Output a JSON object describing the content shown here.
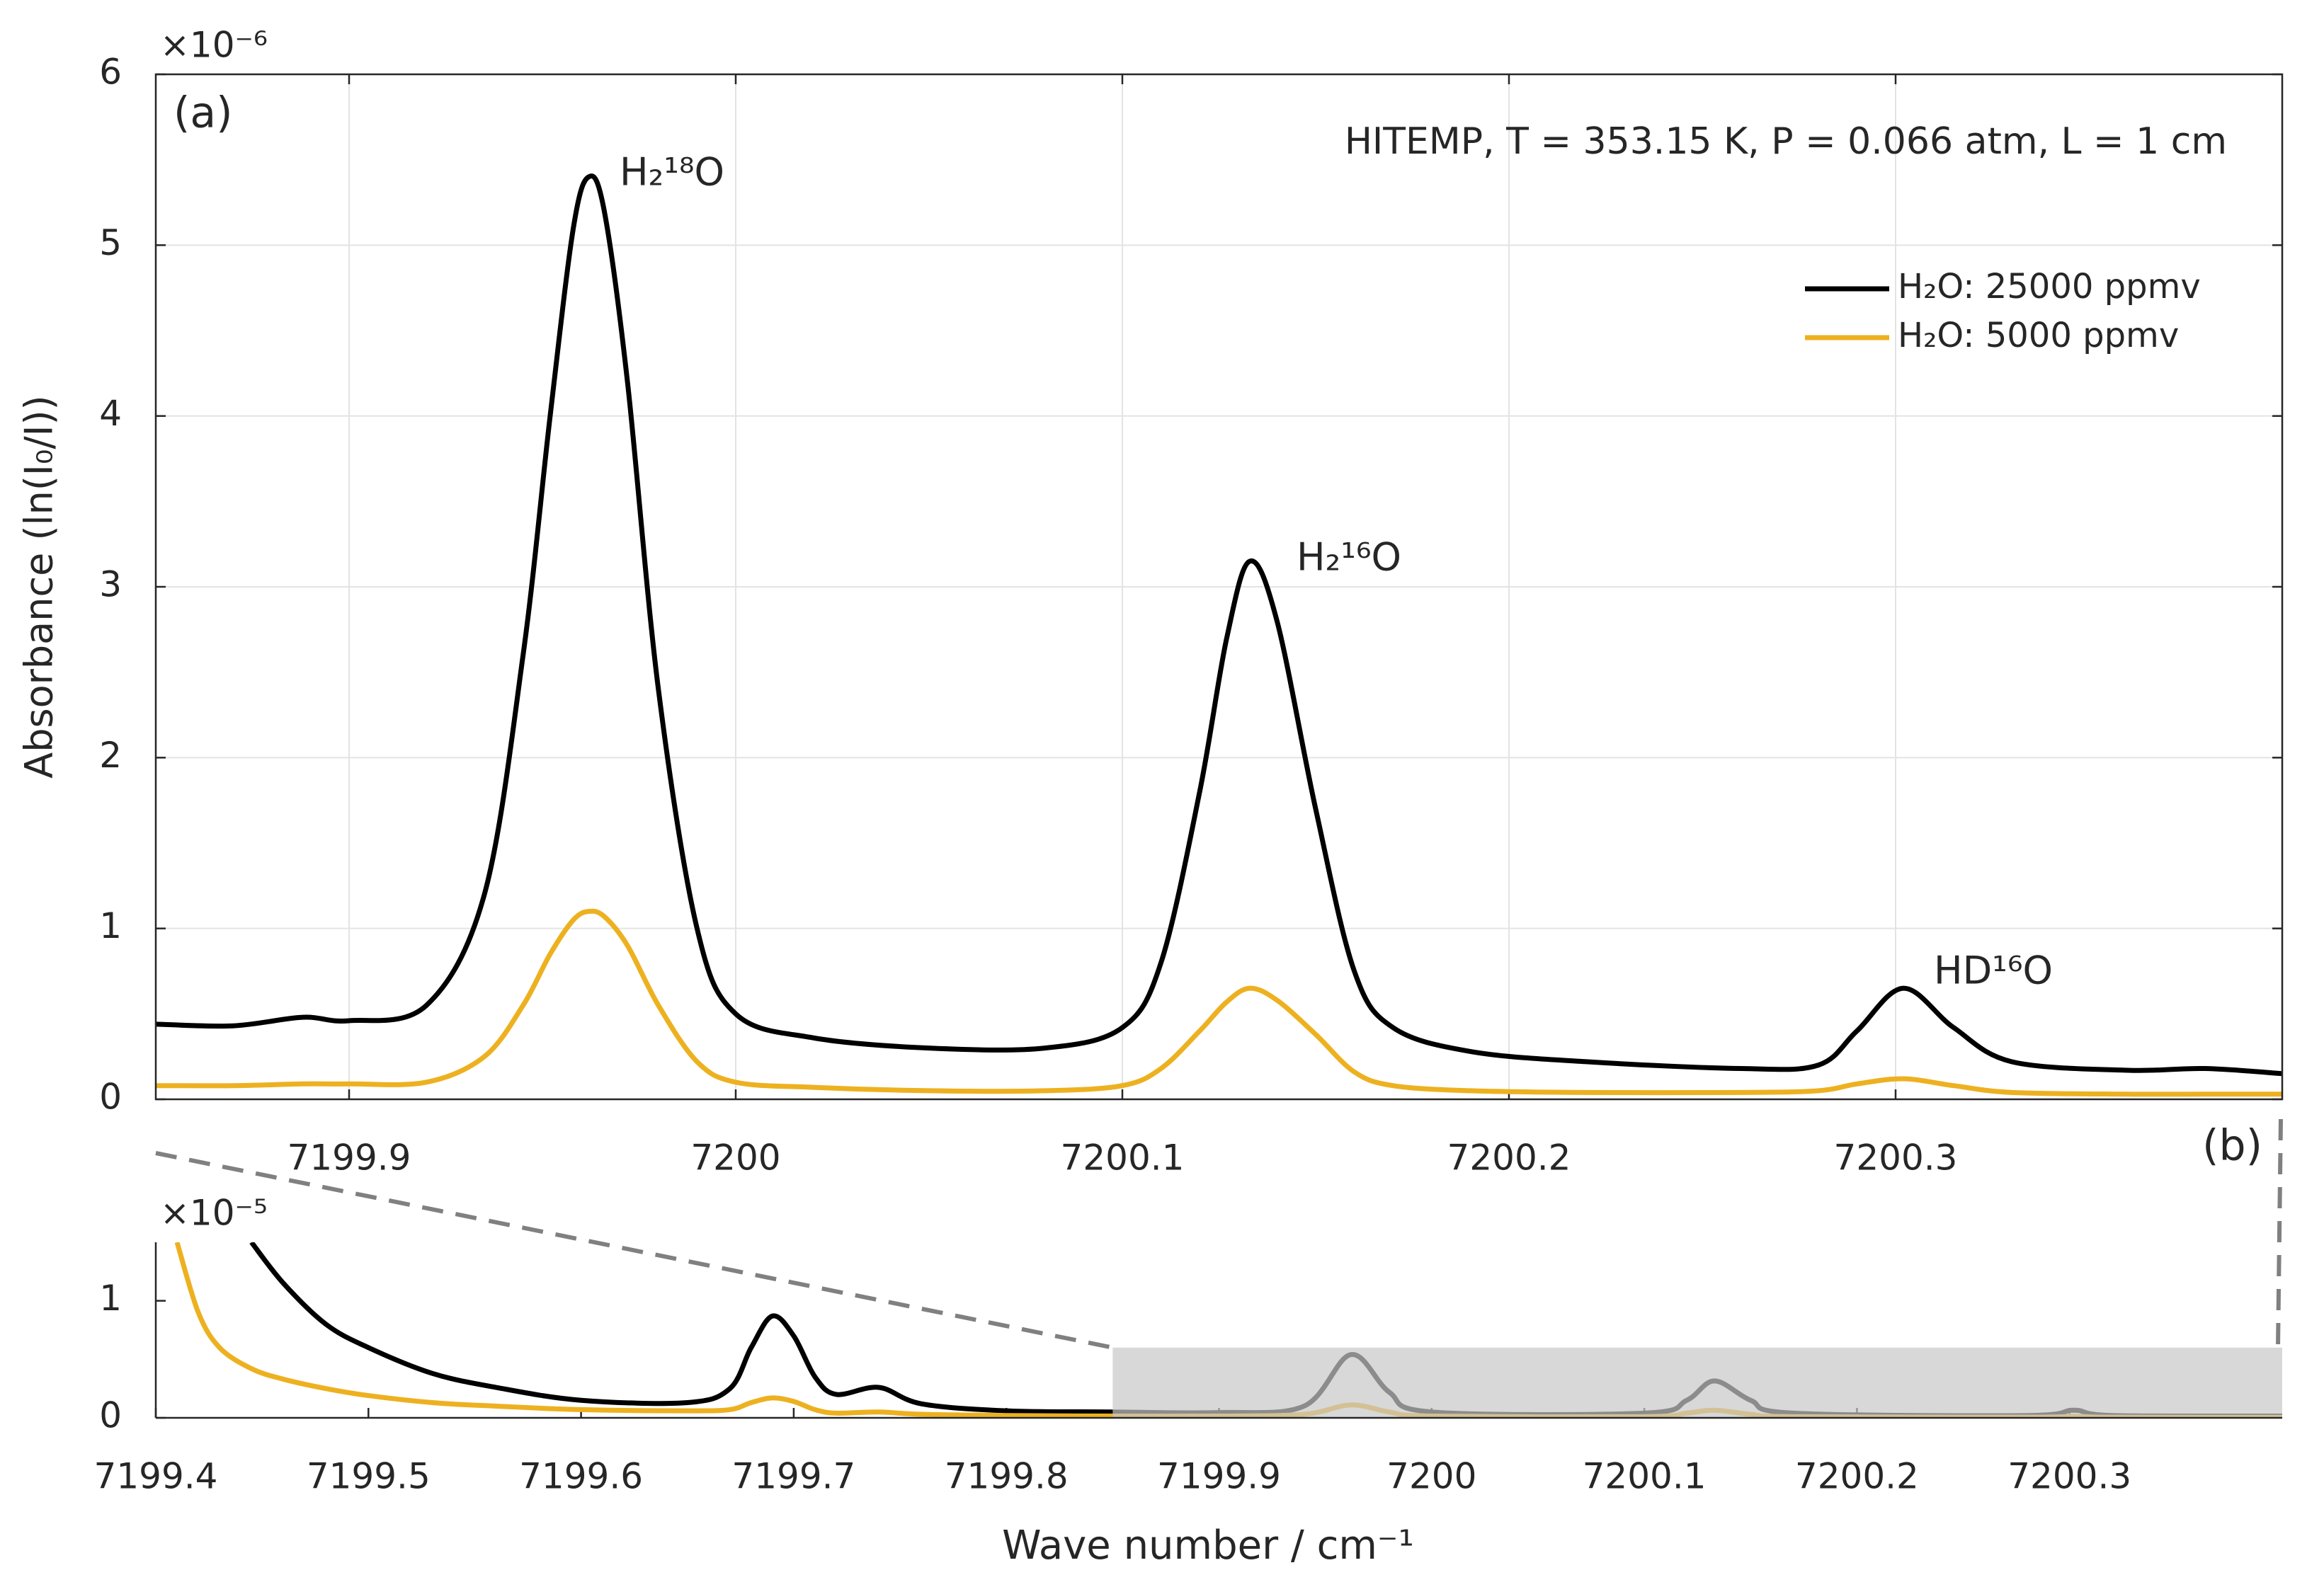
{
  "chart_data": [
    {
      "type": "line",
      "panel_label": "(a)",
      "annotation": "HITEMP, T = 353.15 K, P = 0.066 atm, L = 1 cm",
      "peak_labels": [
        "H₂¹⁸O",
        "H₂¹⁶O",
        "HD¹⁶O"
      ],
      "y_multiplier": "×10⁻⁶",
      "ylabel": "Absorbance (ln(I₀/I))",
      "x": [
        7199.85,
        7199.87,
        7199.888,
        7199.9,
        7199.92,
        7199.935,
        7199.945,
        7199.952,
        7199.958,
        7199.962,
        7199.966,
        7199.972,
        7199.98,
        7199.99,
        7200.0,
        7200.02,
        7200.05,
        7200.08,
        7200.1,
        7200.11,
        7200.12,
        7200.127,
        7200.133,
        7200.14,
        7200.15,
        7200.16,
        7200.17,
        7200.19,
        7200.22,
        7200.26,
        7200.28,
        7200.29,
        7200.302,
        7200.315,
        7200.33,
        7200.36,
        7200.38,
        7200.4
      ],
      "series": [
        {
          "name": "H₂O: 25000 ppmv",
          "color": "#000000",
          "values": [
            0.44,
            0.43,
            0.48,
            0.46,
            0.55,
            1.2,
            2.6,
            4.0,
            5.1,
            5.4,
            5.2,
            4.2,
            2.4,
            1.0,
            0.5,
            0.36,
            0.3,
            0.3,
            0.42,
            0.8,
            1.8,
            2.7,
            3.15,
            2.8,
            1.7,
            0.75,
            0.42,
            0.28,
            0.22,
            0.18,
            0.2,
            0.4,
            0.65,
            0.42,
            0.22,
            0.17,
            0.18,
            0.15
          ]
        },
        {
          "name": "H₂O: 5000 ppmv",
          "color": "#edb120",
          "values": [
            0.08,
            0.08,
            0.09,
            0.09,
            0.1,
            0.25,
            0.55,
            0.85,
            1.05,
            1.1,
            1.07,
            0.9,
            0.55,
            0.22,
            0.1,
            0.07,
            0.05,
            0.05,
            0.08,
            0.18,
            0.4,
            0.57,
            0.65,
            0.58,
            0.38,
            0.16,
            0.08,
            0.05,
            0.04,
            0.04,
            0.05,
            0.09,
            0.12,
            0.08,
            0.04,
            0.03,
            0.03,
            0.03
          ]
        }
      ],
      "xlim": [
        7199.85,
        7200.4
      ],
      "xticks": [
        7199.9,
        7200,
        7200.1,
        7200.2,
        7200.3
      ],
      "ylim": [
        0,
        6
      ],
      "yticks": [
        0,
        1,
        2,
        3,
        4,
        5,
        6
      ],
      "grid": true,
      "legend": "upper right"
    },
    {
      "type": "line",
      "panel_label": "(b)",
      "y_multiplier": "×10⁻⁵",
      "xlabel": "Wave number / cm⁻¹",
      "x": [
        7199.41,
        7199.42,
        7199.43,
        7199.445,
        7199.46,
        7199.48,
        7199.5,
        7199.53,
        7199.56,
        7199.6,
        7199.65,
        7199.67,
        7199.68,
        7199.69,
        7199.7,
        7199.71,
        7199.72,
        7199.74,
        7199.76,
        7199.8,
        7199.85,
        7199.9,
        7199.94,
        7199.962,
        7199.98,
        7200.0,
        7200.1,
        7200.12,
        7200.133,
        7200.15,
        7200.17,
        7200.28,
        7200.302,
        7200.32,
        7200.4
      ],
      "series": [
        {
          "color": "#000000",
          "values": [
            null,
            null,
            null,
            1.5,
            1.15,
            0.8,
            0.6,
            0.38,
            0.26,
            0.15,
            0.13,
            0.25,
            0.6,
            0.87,
            0.7,
            0.35,
            0.2,
            0.26,
            0.12,
            0.06,
            0.05,
            0.045,
            0.1,
            0.54,
            0.22,
            0.05,
            0.04,
            0.15,
            0.315,
            0.15,
            0.04,
            0.02,
            0.065,
            0.02,
            0.015
          ]
        },
        {
          "color": "#edb120",
          "values": [
            1.5,
            0.9,
            0.6,
            0.42,
            0.33,
            0.25,
            0.19,
            0.13,
            0.1,
            0.07,
            0.06,
            0.07,
            0.13,
            0.17,
            0.14,
            0.07,
            0.04,
            0.05,
            0.03,
            0.02,
            0.015,
            0.015,
            0.03,
            0.11,
            0.05,
            0.015,
            0.01,
            0.04,
            0.065,
            0.03,
            0.01,
            0.005,
            0.013,
            0.005,
            0.004
          ]
        }
      ],
      "highlight": {
        "xlim": [
          7199.85,
          7200.4
        ],
        "ylim": [
          0,
          0.6
        ],
        "color": "#c8c8c8"
      },
      "xlim": [
        7199.4,
        7200.4
      ],
      "xticks": [
        7199.4,
        7199.5,
        7199.6,
        7199.7,
        7199.8,
        7199.9,
        7200,
        7200.1,
        7200.2,
        7200.3
      ],
      "ylim": [
        0,
        1.5
      ],
      "yticks": [
        0,
        1
      ],
      "grid": false
    }
  ]
}
